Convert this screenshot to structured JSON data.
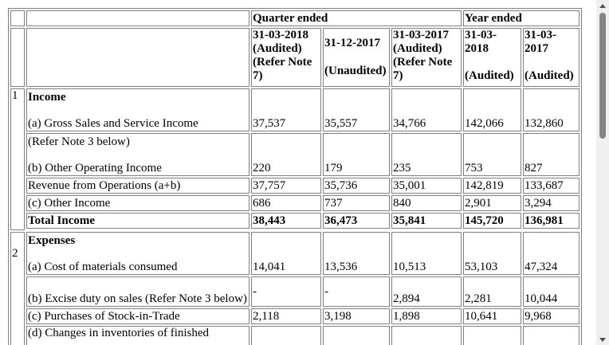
{
  "header": {
    "quarter_ended": "Quarter ended",
    "year_ended": "Year ended",
    "col1": [
      "31-03-2018",
      "(Audited)",
      "(Refer Note",
      "7)"
    ],
    "col2": [
      "31-12-2017",
      "(Unaudited)"
    ],
    "col3": [
      "31-03-2017",
      "(Audited)",
      "(Refer Note",
      "7)"
    ],
    "col4": [
      "31-03-",
      "2018",
      "(Audited)"
    ],
    "col5": [
      "31-03-",
      "2017",
      "(Audited)"
    ]
  },
  "sections": {
    "s1": {
      "num": "1",
      "title": "Income"
    },
    "s2": {
      "num": "2",
      "title": "Expenses"
    }
  },
  "rows": {
    "gross_sales": {
      "label": "(a) Gross Sales and Service Income",
      "values": [
        "37,537",
        "35,557",
        "34,766",
        "142,066",
        "132,860"
      ]
    },
    "refer_note": {
      "label": "(Refer Note 3 below)"
    },
    "other_op": {
      "label": "(b) Other Operating Income",
      "values": [
        "220",
        "179",
        "235",
        "753",
        "827"
      ]
    },
    "revenue_ops": {
      "label": "Revenue from Operations (a+b)",
      "values": [
        "37,757",
        "35,736",
        "35,001",
        "142,819",
        "133,687"
      ]
    },
    "other_income": {
      "label": "(c) Other Income",
      "values": [
        "686",
        "737",
        "840",
        "2,901",
        "3,294"
      ]
    },
    "total_income": {
      "label": "Total Income",
      "values": [
        "38,443",
        "36,473",
        "35,841",
        "145,720",
        "136,981"
      ]
    },
    "materials": {
      "label": "(a) Cost of materials consumed",
      "values": [
        "14,041",
        "13,536",
        "10,513",
        "53,103",
        "47,324"
      ]
    },
    "excise": {
      "label": "(b) Excise duty on sales (Refer Note 3 below)",
      "values": [
        "-",
        "-",
        "2,894",
        "2,281",
        "10,044"
      ]
    },
    "purchases": {
      "label": "(c) Purchases of Stock-in-Trade",
      "values": [
        "2,118",
        "3,198",
        "1,898",
        "10,641",
        "9,968"
      ]
    },
    "changes": {
      "label": "(d) Changes in inventories of finished"
    }
  }
}
